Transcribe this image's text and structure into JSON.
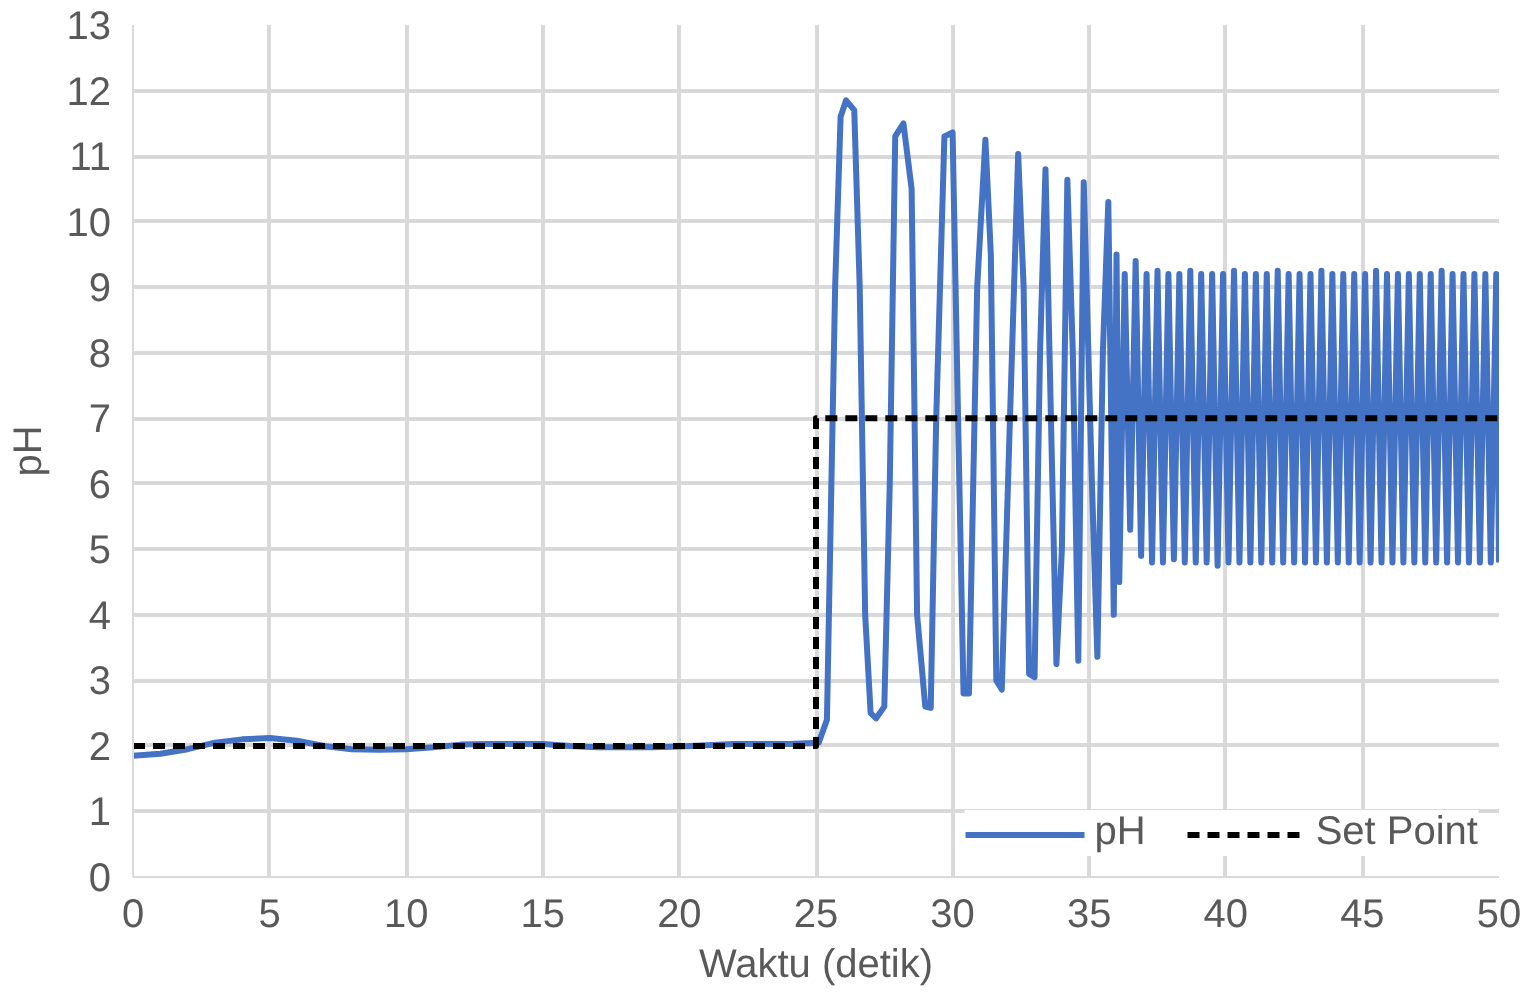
{
  "chart_data": {
    "type": "line",
    "xlabel": "Waktu (detik)",
    "ylabel": "pH",
    "xlim": [
      0,
      50
    ],
    "xticks": [
      0,
      5,
      10,
      15,
      20,
      25,
      30,
      35,
      40,
      45,
      50
    ],
    "ylim": [
      0,
      13
    ],
    "yticks": [
      0,
      1,
      2,
      3,
      4,
      5,
      6,
      7,
      8,
      9,
      10,
      11,
      12,
      13
    ],
    "grid": true,
    "legend": "bottom right",
    "marker": "none",
    "series": [
      {
        "name": "pH",
        "color": "#4472c4",
        "line_style": "solid",
        "x": [
          0,
          1,
          2,
          3,
          4,
          5,
          6,
          7,
          8,
          9,
          10,
          11,
          12,
          13,
          14,
          15,
          16,
          17,
          18,
          19,
          20,
          21,
          22,
          23,
          24,
          25.1,
          25.4,
          25.7,
          25.9,
          26.1,
          26.4,
          26.6,
          26.8,
          27.0,
          27.2,
          27.5,
          27.7,
          27.9,
          28.2,
          28.5,
          28.7,
          29.0,
          29.2,
          29.4,
          29.7,
          30.0,
          30.2,
          30.4,
          30.6,
          30.9,
          31.2,
          31.4,
          31.6,
          31.8,
          32.1,
          32.4,
          32.6,
          32.8,
          33.0,
          33.2,
          33.4,
          33.6,
          33.8,
          34.0,
          34.2,
          34.4,
          34.6,
          34.8,
          35.1,
          35.3,
          35.5,
          35.7,
          35.9,
          36.0,
          36.1,
          36.3,
          36.5,
          36.7,
          36.9,
          37.1,
          37.3,
          37.5,
          37.7,
          37.9,
          38.1,
          38.3,
          38.5,
          38.7,
          38.9,
          39.1,
          39.3,
          39.5,
          39.7,
          39.9,
          40.1,
          40.3,
          40.5,
          40.7,
          40.9,
          41.1,
          41.3,
          41.5,
          41.7,
          41.9,
          42.1,
          42.3,
          42.5,
          42.7,
          42.9,
          43.1,
          43.3,
          43.5,
          43.7,
          43.9,
          44.1,
          44.3,
          44.5,
          44.7,
          44.9,
          45.1,
          45.3,
          45.5,
          45.7,
          45.9,
          46.1,
          46.3,
          46.5,
          46.7,
          46.9,
          47.1,
          47.3,
          47.5,
          47.7,
          47.9,
          48.1,
          48.3,
          48.5,
          48.7,
          48.9,
          49.1,
          49.3,
          49.5,
          49.7,
          49.9,
          50
        ],
        "values": [
          1.85,
          1.88,
          1.95,
          2.05,
          2.1,
          2.12,
          2.08,
          2.0,
          1.95,
          1.94,
          1.95,
          1.98,
          2.02,
          2.03,
          2.03,
          2.03,
          2.0,
          1.98,
          1.98,
          1.98,
          1.99,
          2.01,
          2.03,
          2.03,
          2.03,
          2.05,
          2.4,
          9.0,
          11.6,
          11.85,
          11.7,
          9.0,
          4.0,
          2.5,
          2.42,
          2.6,
          6.0,
          11.3,
          11.5,
          10.5,
          4.0,
          2.6,
          2.58,
          7.0,
          11.3,
          11.36,
          7.0,
          2.8,
          2.8,
          9.0,
          11.25,
          9.5,
          3.0,
          2.86,
          7.0,
          11.03,
          9.0,
          3.1,
          3.05,
          8.0,
          10.8,
          7.0,
          3.25,
          5.0,
          10.64,
          8.0,
          3.3,
          10.6,
          6.0,
          3.36,
          8.0,
          10.3,
          4.0,
          9.5,
          4.5,
          9.2,
          5.3,
          9.4,
          4.9,
          9.2,
          4.8,
          9.25,
          4.8,
          9.2,
          4.85,
          9.2,
          4.8,
          9.25,
          4.8,
          9.2,
          4.8,
          9.2,
          4.75,
          9.2,
          4.8,
          9.25,
          4.8,
          9.2,
          4.8,
          9.2,
          4.8,
          9.2,
          4.8,
          9.25,
          4.8,
          9.2,
          4.8,
          9.2,
          4.8,
          9.2,
          4.8,
          9.25,
          4.8,
          9.2,
          4.8,
          9.2,
          4.8,
          9.2,
          4.8,
          9.2,
          4.8,
          9.25,
          4.8,
          9.2,
          4.8,
          9.2,
          4.8,
          9.2,
          4.8,
          9.2,
          4.8,
          9.2,
          4.8,
          9.25,
          4.8,
          9.2,
          4.8,
          9.2,
          4.8,
          9.2,
          4.8,
          9.2,
          4.8,
          9.2,
          4.8
        ]
      },
      {
        "name": "Set Point",
        "color": "#000000",
        "line_style": "dashed",
        "x": [
          0,
          25,
          25,
          50
        ],
        "values": [
          2,
          2,
          7,
          7
        ]
      }
    ]
  }
}
